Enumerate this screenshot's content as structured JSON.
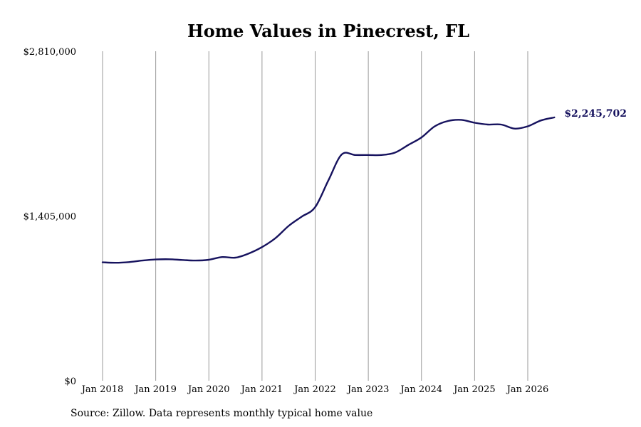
{
  "chart_data": {
    "type": "line",
    "title": "Home Values in Pinecrest, FL",
    "xlabel": "",
    "ylabel": "",
    "ylim": [
      0,
      2810000
    ],
    "y_tick_labels": [
      "$0",
      "$1,405,000",
      "$2,810,000"
    ],
    "y_tick_values": [
      0,
      1405000,
      2810000
    ],
    "x_tick_labels": [
      "Jan 2018",
      "Jan 2019",
      "Jan 2020",
      "Jan 2021",
      "Jan 2022",
      "Jan 2023",
      "Jan 2024",
      "Jan 2025",
      "Jan 2026"
    ],
    "x_tick_values": [
      "2018-01",
      "2019-01",
      "2020-01",
      "2021-01",
      "2022-01",
      "2023-01",
      "2024-01",
      "2025-01",
      "2026-01"
    ],
    "xlim": [
      "2018-01",
      "2026-07"
    ],
    "vertical_gridlines": true,
    "horizontal_gridlines": false,
    "line_color": "#16125e",
    "end_label": "$2,245,702",
    "series": [
      {
        "x": [
          "2018-01",
          "2018-04",
          "2018-07",
          "2018-10",
          "2019-01",
          "2019-04",
          "2019-07",
          "2019-10",
          "2020-01",
          "2020-04",
          "2020-07",
          "2020-10",
          "2021-01",
          "2021-04",
          "2021-07",
          "2021-10",
          "2022-01",
          "2022-04",
          "2022-07",
          "2022-10",
          "2023-01",
          "2023-04",
          "2023-07",
          "2023-10",
          "2024-01",
          "2024-04",
          "2024-07",
          "2024-10",
          "2025-01",
          "2025-04",
          "2025-07",
          "2025-10",
          "2026-01",
          "2026-04",
          "2026-07"
        ],
        "y": [
          1010000,
          1006000,
          1012000,
          1025000,
          1034000,
          1036000,
          1030000,
          1025000,
          1032000,
          1055000,
          1050000,
          1085000,
          1140000,
          1215000,
          1320000,
          1400000,
          1480000,
          1710000,
          1930000,
          1925000,
          1925000,
          1925000,
          1945000,
          2010000,
          2075000,
          2170000,
          2215000,
          2225000,
          2200000,
          2185000,
          2185000,
          2150000,
          2170000,
          2220000,
          2245702
        ]
      }
    ]
  },
  "source": "Source: Zillow. Data represents monthly typical home value"
}
